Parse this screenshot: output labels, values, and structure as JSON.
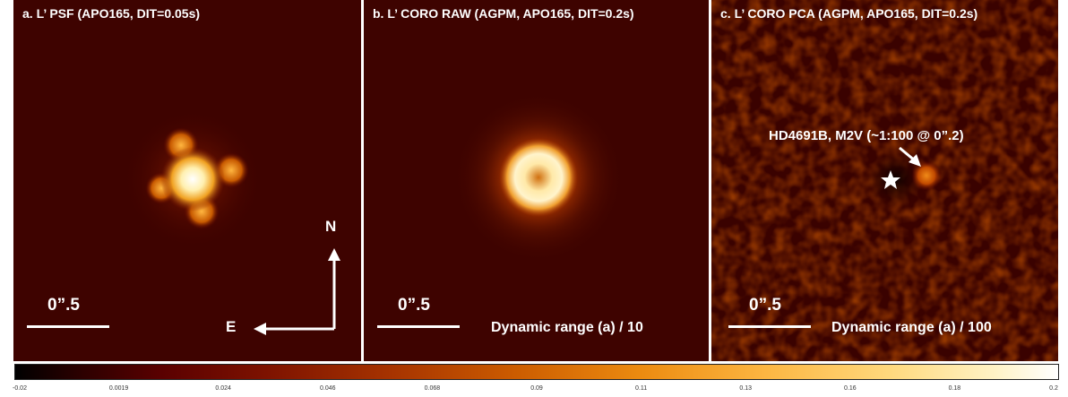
{
  "panels": [
    {
      "title": "a. L’ PSF (APO165, DIT=0.05s)",
      "scale_label": "0”.5"
    },
    {
      "title": "b. L’ CORO RAW (AGPM, APO165, DIT=0.2s)",
      "scale_label": "0”.5",
      "dynamic_range": "Dynamic range (a) / 10"
    },
    {
      "title": "c. L’ CORO PCA (AGPM, APO165, DIT=0.2s)",
      "scale_label": "0”.5",
      "dynamic_range": "Dynamic range (a) / 100",
      "annotation": "HD4691B, M2V (~1:100 @ 0”.2)"
    }
  ],
  "compass": {
    "north": "N",
    "east": "E"
  },
  "colorbar": {
    "colormap": "heat",
    "min": -0.02,
    "max": 0.2,
    "ticks": [
      "-0.02",
      "0.0019",
      "0.024",
      "0.046",
      "0.068",
      "0.09",
      "0.11",
      "0.13",
      "0.16",
      "0.18",
      "0.2"
    ]
  },
  "icons": [
    "star-icon",
    "arrow-icon"
  ]
}
